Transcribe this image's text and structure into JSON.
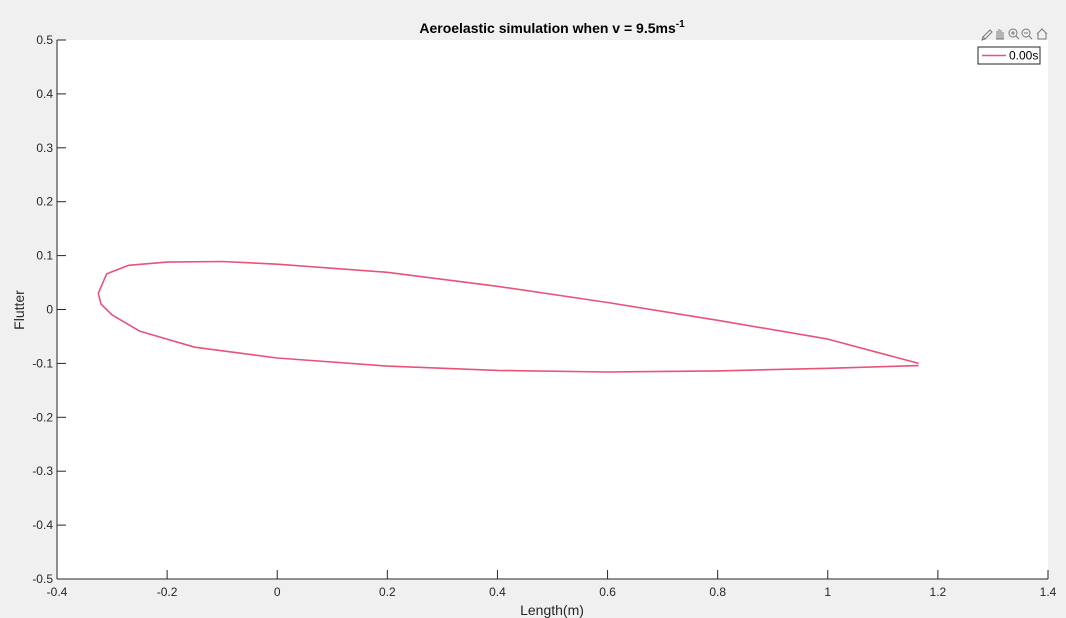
{
  "chart_data": {
    "type": "line",
    "title": "Aeroelastic simulation when v = 9.5ms",
    "title_superscript": "-1",
    "xlabel": "Length(m)",
    "ylabel": "Flutter",
    "xlim": [
      -0.4,
      1.4
    ],
    "ylim": [
      -0.5,
      0.5
    ],
    "xticks": [
      -0.4,
      -0.2,
      0,
      0.2,
      0.4,
      0.6,
      0.8,
      1,
      1.2,
      1.4
    ],
    "xtick_labels": [
      "-0.4",
      "-0.2",
      "0",
      "0.2",
      "0.4",
      "0.6",
      "0.8",
      "1",
      "1.2",
      "1.4"
    ],
    "yticks": [
      -0.5,
      -0.4,
      -0.3,
      -0.2,
      -0.1,
      0,
      0.1,
      0.2,
      0.3,
      0.4,
      0.5
    ],
    "ytick_labels": [
      "-0.5",
      "-0.4",
      "-0.3",
      "-0.2",
      "-0.1",
      "0",
      "0.1",
      "0.2",
      "0.3",
      "0.4",
      "0.5"
    ],
    "grid": false,
    "legend_position": "top-right",
    "series": [
      {
        "name": "0.00s",
        "color": "#e8537a",
        "x": [
          1.165,
          1.0,
          0.8,
          0.6,
          0.4,
          0.2,
          0.0,
          -0.1,
          -0.2,
          -0.27,
          -0.31,
          -0.325,
          -0.32,
          -0.3,
          -0.25,
          -0.15,
          0.0,
          0.2,
          0.4,
          0.6,
          0.8,
          1.0,
          1.165
        ],
        "y": [
          -0.1,
          -0.055,
          -0.02,
          0.013,
          0.043,
          0.069,
          0.084,
          0.089,
          0.088,
          0.082,
          0.066,
          0.03,
          0.01,
          -0.01,
          -0.04,
          -0.07,
          -0.09,
          -0.105,
          -0.113,
          -0.116,
          -0.114,
          -0.109,
          -0.104
        ]
      }
    ]
  },
  "toolbar": {
    "icons": [
      "brush-icon",
      "pan-icon",
      "zoom-in-icon",
      "zoom-out-icon",
      "home-icon"
    ]
  }
}
